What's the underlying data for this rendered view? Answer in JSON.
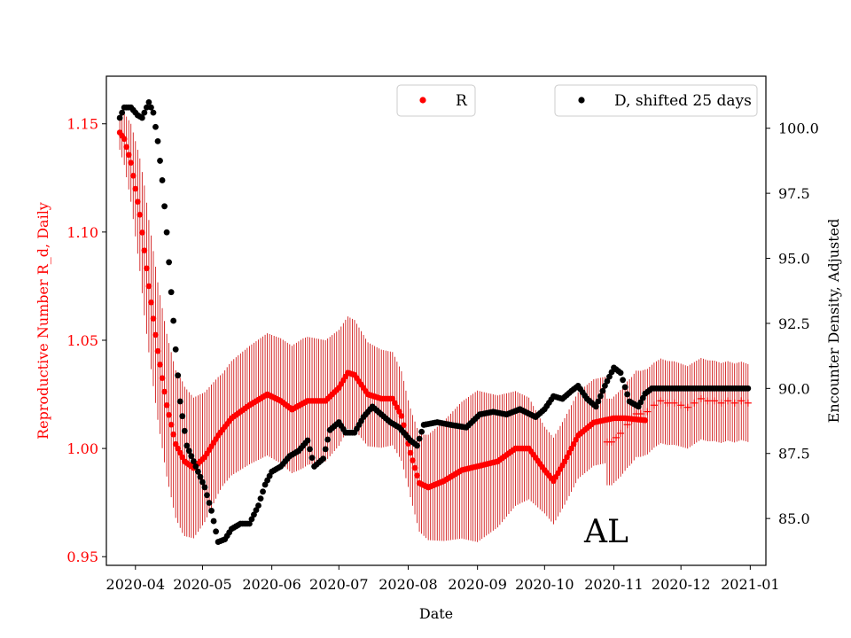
{
  "chart_data": {
    "type": "scatter",
    "xlabel": "Date",
    "ylabel_left": "Reproductive Number R_d, Daily",
    "ylabel_right": "Encounter Density, Adjusted",
    "annotation": "AL",
    "x_range": [
      "2020-03-19",
      "2021-01-08"
    ],
    "y_left": {
      "lim": [
        0.946,
        1.172
      ],
      "ticks": [
        0.95,
        1.0,
        1.05,
        1.1,
        1.15
      ],
      "tick_labels": [
        "0.95",
        "1.00",
        "1.05",
        "1.10",
        "1.15"
      ]
    },
    "y_right": {
      "lim": [
        83.2,
        102.0
      ],
      "ticks": [
        85.0,
        87.5,
        90.0,
        92.5,
        95.0,
        97.5,
        100.0
      ],
      "tick_labels": [
        "85.0",
        "87.5",
        "90.0",
        "92.5",
        "95.0",
        "97.5",
        "100.0"
      ]
    },
    "x_ticks": [
      {
        "date": "2020-04-01",
        "label": "2020-04"
      },
      {
        "date": "2020-05-01",
        "label": "2020-05"
      },
      {
        "date": "2020-06-01",
        "label": "2020-06"
      },
      {
        "date": "2020-07-01",
        "label": "2020-07"
      },
      {
        "date": "2020-08-01",
        "label": "2020-08"
      },
      {
        "date": "2020-09-01",
        "label": "2020-09"
      },
      {
        "date": "2020-10-01",
        "label": "2020-10"
      },
      {
        "date": "2020-11-01",
        "label": "2020-11"
      },
      {
        "date": "2020-12-01",
        "label": "2020-12"
      },
      {
        "date": "2021-01-01",
        "label": "2021-01"
      }
    ],
    "colors": {
      "R": "#ff0000",
      "D": "#000000",
      "errorbar": "#cc0000"
    },
    "series": [
      {
        "name": "R",
        "legend_label": "R",
        "legend_position": "top-center",
        "axis": "left",
        "error_halfwidth_keyframes": [
          [
            "2020-03-25",
            0.008
          ],
          [
            "2020-04-05",
            0.03
          ],
          [
            "2020-04-22",
            0.035
          ],
          [
            "2020-05-10",
            0.026
          ],
          [
            "2020-06-15",
            0.03
          ],
          [
            "2020-07-05",
            0.026
          ],
          [
            "2020-08-01",
            0.02
          ],
          [
            "2020-09-01",
            0.035
          ],
          [
            "2020-10-01",
            0.02
          ],
          [
            "2020-11-10",
            0.02
          ],
          [
            "2020-12-31",
            0.018
          ]
        ],
        "keyframes": [
          [
            "2020-03-25",
            1.146
          ],
          [
            "2020-03-27",
            1.143
          ],
          [
            "2020-03-30",
            1.132
          ],
          [
            "2020-04-03",
            1.108
          ],
          [
            "2020-04-07",
            1.075
          ],
          [
            "2020-04-11",
            1.045
          ],
          [
            "2020-04-15",
            1.02
          ],
          [
            "2020-04-19",
            1.002
          ],
          [
            "2020-04-23",
            0.994
          ],
          [
            "2020-04-27",
            0.991
          ],
          [
            "2020-05-02",
            0.996
          ],
          [
            "2020-05-08",
            1.006
          ],
          [
            "2020-05-14",
            1.014
          ],
          [
            "2020-05-22",
            1.02
          ],
          [
            "2020-05-30",
            1.025
          ],
          [
            "2020-06-05",
            1.022
          ],
          [
            "2020-06-10",
            1.018
          ],
          [
            "2020-06-17",
            1.022
          ],
          [
            "2020-06-25",
            1.022
          ],
          [
            "2020-07-01",
            1.028
          ],
          [
            "2020-07-05",
            1.035
          ],
          [
            "2020-07-08",
            1.034
          ],
          [
            "2020-07-14",
            1.025
          ],
          [
            "2020-07-20",
            1.023
          ],
          [
            "2020-07-25",
            1.023
          ],
          [
            "2020-07-29",
            1.015
          ],
          [
            "2020-08-02",
            0.998
          ],
          [
            "2020-08-06",
            0.984
          ],
          [
            "2020-08-10",
            0.982
          ],
          [
            "2020-08-17",
            0.985
          ],
          [
            "2020-08-25",
            0.99
          ],
          [
            "2020-09-02",
            0.992
          ],
          [
            "2020-09-10",
            0.994
          ],
          [
            "2020-09-18",
            1.0
          ],
          [
            "2020-09-24",
            1.0
          ],
          [
            "2020-10-01",
            0.99
          ],
          [
            "2020-10-05",
            0.985
          ],
          [
            "2020-10-10",
            0.994
          ],
          [
            "2020-10-16",
            1.006
          ],
          [
            "2020-10-23",
            1.012
          ],
          [
            "2020-11-01",
            1.014
          ],
          [
            "2020-11-06",
            1.014
          ],
          [
            "2020-11-15",
            1.013
          ]
        ],
        "sparse_points": [
          [
            "2020-10-29",
            1.003
          ],
          [
            "2020-10-31",
            1.003
          ],
          [
            "2020-11-02",
            1.005
          ],
          [
            "2020-11-04",
            1.007
          ],
          [
            "2020-11-07",
            1.011
          ],
          [
            "2020-11-09",
            1.013
          ],
          [
            "2020-11-11",
            1.016
          ],
          [
            "2020-11-13",
            1.016
          ],
          [
            "2020-11-16",
            1.017
          ],
          [
            "2020-11-19",
            1.02
          ],
          [
            "2020-11-22",
            1.022
          ],
          [
            "2020-11-25",
            1.021
          ],
          [
            "2020-11-28",
            1.021
          ],
          [
            "2020-12-01",
            1.02
          ],
          [
            "2020-12-04",
            1.019
          ],
          [
            "2020-12-07",
            1.021
          ],
          [
            "2020-12-10",
            1.023
          ],
          [
            "2020-12-13",
            1.022
          ],
          [
            "2020-12-16",
            1.022
          ],
          [
            "2020-12-19",
            1.021
          ],
          [
            "2020-12-22",
            1.022
          ],
          [
            "2020-12-25",
            1.021
          ],
          [
            "2020-12-28",
            1.022
          ],
          [
            "2020-12-31",
            1.021
          ]
        ]
      },
      {
        "name": "D",
        "legend_label": "D, shifted 25 days",
        "legend_position": "top-right",
        "axis": "right",
        "keyframes": [
          [
            "2020-03-25",
            100.4
          ],
          [
            "2020-03-27",
            100.8
          ],
          [
            "2020-03-30",
            100.8
          ],
          [
            "2020-04-02",
            100.5
          ],
          [
            "2020-04-04",
            100.4
          ],
          [
            "2020-04-07",
            101.0
          ],
          [
            "2020-04-09",
            100.6
          ],
          [
            "2020-04-11",
            99.5
          ],
          [
            "2020-04-13",
            98.0
          ],
          [
            "2020-04-15",
            96.0
          ],
          [
            "2020-04-17",
            93.7
          ],
          [
            "2020-04-19",
            91.5
          ],
          [
            "2020-04-21",
            89.5
          ],
          [
            "2020-04-24",
            87.8
          ],
          [
            "2020-04-28",
            87.0
          ],
          [
            "2020-05-02",
            86.2
          ],
          [
            "2020-05-05",
            85.3
          ],
          [
            "2020-05-08",
            84.1
          ],
          [
            "2020-05-11",
            84.2
          ],
          [
            "2020-05-14",
            84.6
          ],
          [
            "2020-05-18",
            84.8
          ],
          [
            "2020-05-22",
            84.8
          ],
          [
            "2020-05-26",
            85.5
          ],
          [
            "2020-05-29",
            86.3
          ],
          [
            "2020-06-01",
            86.8
          ],
          [
            "2020-06-05",
            87.0
          ],
          [
            "2020-06-09",
            87.4
          ],
          [
            "2020-06-13",
            87.6
          ],
          [
            "2020-06-17",
            88.0
          ],
          [
            "2020-06-20",
            87.0
          ],
          [
            "2020-06-24",
            87.3
          ],
          [
            "2020-06-27",
            88.4
          ],
          [
            "2020-07-01",
            88.7
          ],
          [
            "2020-07-04",
            88.3
          ],
          [
            "2020-07-08",
            88.3
          ],
          [
            "2020-07-12",
            88.9
          ],
          [
            "2020-07-16",
            89.3
          ],
          [
            "2020-07-20",
            89.0
          ],
          [
            "2020-07-24",
            88.7
          ],
          [
            "2020-07-28",
            88.5
          ],
          [
            "2020-08-02",
            88.0
          ],
          [
            "2020-08-05",
            87.8
          ],
          [
            "2020-08-08",
            88.6
          ],
          [
            "2020-08-14",
            88.7
          ],
          [
            "2020-08-20",
            88.6
          ],
          [
            "2020-08-27",
            88.5
          ],
          [
            "2020-09-02",
            89.0
          ],
          [
            "2020-09-08",
            89.1
          ],
          [
            "2020-09-14",
            89.0
          ],
          [
            "2020-09-20",
            89.2
          ],
          [
            "2020-09-27",
            88.9
          ],
          [
            "2020-10-01",
            89.2
          ],
          [
            "2020-10-05",
            89.7
          ],
          [
            "2020-10-09",
            89.6
          ],
          [
            "2020-10-13",
            89.9
          ],
          [
            "2020-10-16",
            90.1
          ],
          [
            "2020-10-20",
            89.6
          ],
          [
            "2020-10-24",
            89.3
          ],
          [
            "2020-10-28",
            90.1
          ],
          [
            "2020-11-01",
            90.8
          ],
          [
            "2020-11-04",
            90.6
          ],
          [
            "2020-11-08",
            89.5
          ],
          [
            "2020-11-12",
            89.3
          ],
          [
            "2020-11-15",
            89.8
          ],
          [
            "2020-11-18",
            90.0
          ],
          [
            "2020-12-31",
            90.0
          ]
        ]
      }
    ]
  }
}
